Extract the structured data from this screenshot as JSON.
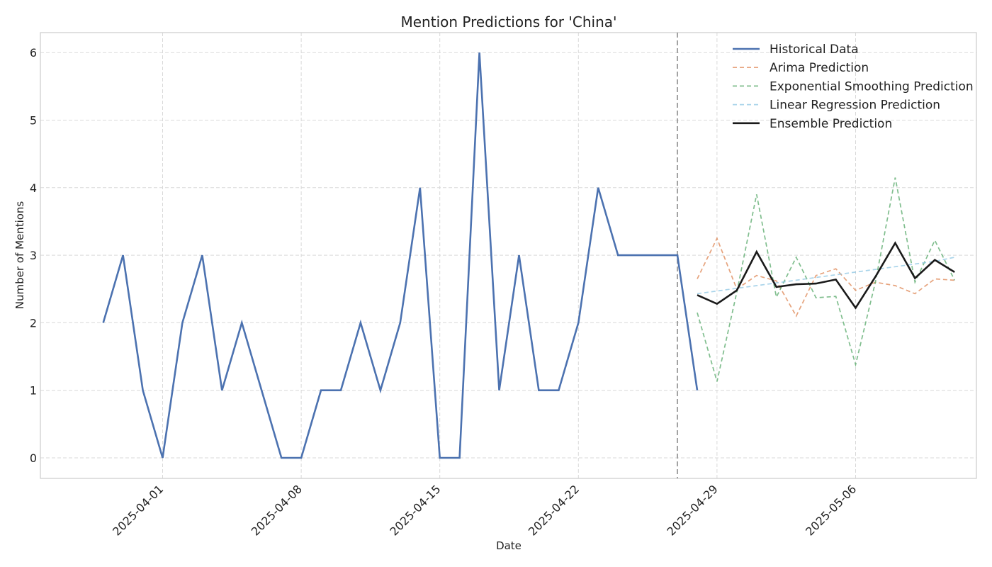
{
  "chart_data": {
    "type": "line",
    "title": "Mention Predictions for 'China'",
    "xlabel": "Date",
    "ylabel": "Number of Mentions",
    "x_range": [
      "2025-03-25",
      "2025-05-13"
    ],
    "ylim": [
      -0.3,
      6.3
    ],
    "y_ticks": [
      "0",
      "1",
      "2",
      "3",
      "4",
      "5",
      "6"
    ],
    "x_ticks": [
      "2025-04-01",
      "2025-04-08",
      "2025-04-15",
      "2025-04-22",
      "2025-04-29",
      "2025-05-06"
    ],
    "grid": true,
    "legend_position": "top-right",
    "forecast_start": "2025-04-27",
    "series": [
      {
        "name": "Historical Data",
        "color": "#4c72b0",
        "dash": "solid",
        "x": [
          "2025-03-29",
          "2025-03-30",
          "2025-03-31",
          "2025-04-01",
          "2025-04-02",
          "2025-04-03",
          "2025-04-04",
          "2025-04-05",
          "2025-04-06",
          "2025-04-07",
          "2025-04-08",
          "2025-04-09",
          "2025-04-10",
          "2025-04-11",
          "2025-04-12",
          "2025-04-13",
          "2025-04-14",
          "2025-04-15",
          "2025-04-16",
          "2025-04-17",
          "2025-04-18",
          "2025-04-19",
          "2025-04-20",
          "2025-04-21",
          "2025-04-22",
          "2025-04-23",
          "2025-04-24",
          "2025-04-25",
          "2025-04-26",
          "2025-04-27",
          "2025-04-28"
        ],
        "values": [
          2,
          3,
          1,
          0,
          2,
          3,
          1,
          2,
          1,
          0,
          0,
          1,
          1,
          2,
          1,
          2,
          4,
          0,
          0,
          6,
          1,
          3,
          1,
          1,
          2,
          4,
          3,
          3,
          3,
          3,
          1
        ]
      },
      {
        "name": "Arima Prediction",
        "color": "#dd8452",
        "dash": "dashed",
        "x": [
          "2025-04-28",
          "2025-04-29",
          "2025-04-30",
          "2025-05-01",
          "2025-05-02",
          "2025-05-03",
          "2025-05-04",
          "2025-05-05",
          "2025-05-06",
          "2025-05-07",
          "2025-05-08",
          "2025-05-09",
          "2025-05-10",
          "2025-05-11"
        ],
        "values": [
          2.65,
          3.25,
          2.5,
          2.7,
          2.62,
          2.1,
          2.7,
          2.8,
          2.48,
          2.6,
          2.55,
          2.43,
          2.65,
          2.63
        ]
      },
      {
        "name": "Exponential Smoothing Prediction",
        "color": "#55a868",
        "dash": "dashed",
        "x": [
          "2025-04-28",
          "2025-04-29",
          "2025-04-30",
          "2025-05-01",
          "2025-05-02",
          "2025-05-03",
          "2025-05-04",
          "2025-05-05",
          "2025-05-06",
          "2025-05-07",
          "2025-05-08",
          "2025-05-09",
          "2025-05-10",
          "2025-05-11"
        ],
        "values": [
          2.15,
          1.13,
          2.45,
          3.9,
          2.38,
          2.97,
          2.37,
          2.39,
          1.38,
          2.6,
          4.15,
          2.6,
          3.22,
          2.63
        ]
      },
      {
        "name": "Linear Regression Prediction",
        "color": "#8cc5e3",
        "dash": "dashed",
        "x": [
          "2025-04-28",
          "2025-04-29",
          "2025-04-30",
          "2025-05-01",
          "2025-05-02",
          "2025-05-03",
          "2025-05-04",
          "2025-05-05",
          "2025-05-06",
          "2025-05-07",
          "2025-05-08",
          "2025-05-09",
          "2025-05-10",
          "2025-05-11"
        ],
        "values": [
          2.43,
          2.47,
          2.51,
          2.55,
          2.59,
          2.63,
          2.67,
          2.71,
          2.75,
          2.79,
          2.83,
          2.87,
          2.91,
          2.97
        ]
      },
      {
        "name": "Ensemble Prediction",
        "color": "#1a1a1a",
        "dash": "solid",
        "x": [
          "2025-04-28",
          "2025-04-29",
          "2025-04-30",
          "2025-05-01",
          "2025-05-02",
          "2025-05-03",
          "2025-05-04",
          "2025-05-05",
          "2025-05-06",
          "2025-05-07",
          "2025-05-08",
          "2025-05-09",
          "2025-05-10",
          "2025-05-11"
        ],
        "values": [
          2.41,
          2.28,
          2.48,
          3.05,
          2.53,
          2.57,
          2.58,
          2.64,
          2.22,
          2.68,
          3.18,
          2.66,
          2.93,
          2.75
        ]
      }
    ]
  }
}
